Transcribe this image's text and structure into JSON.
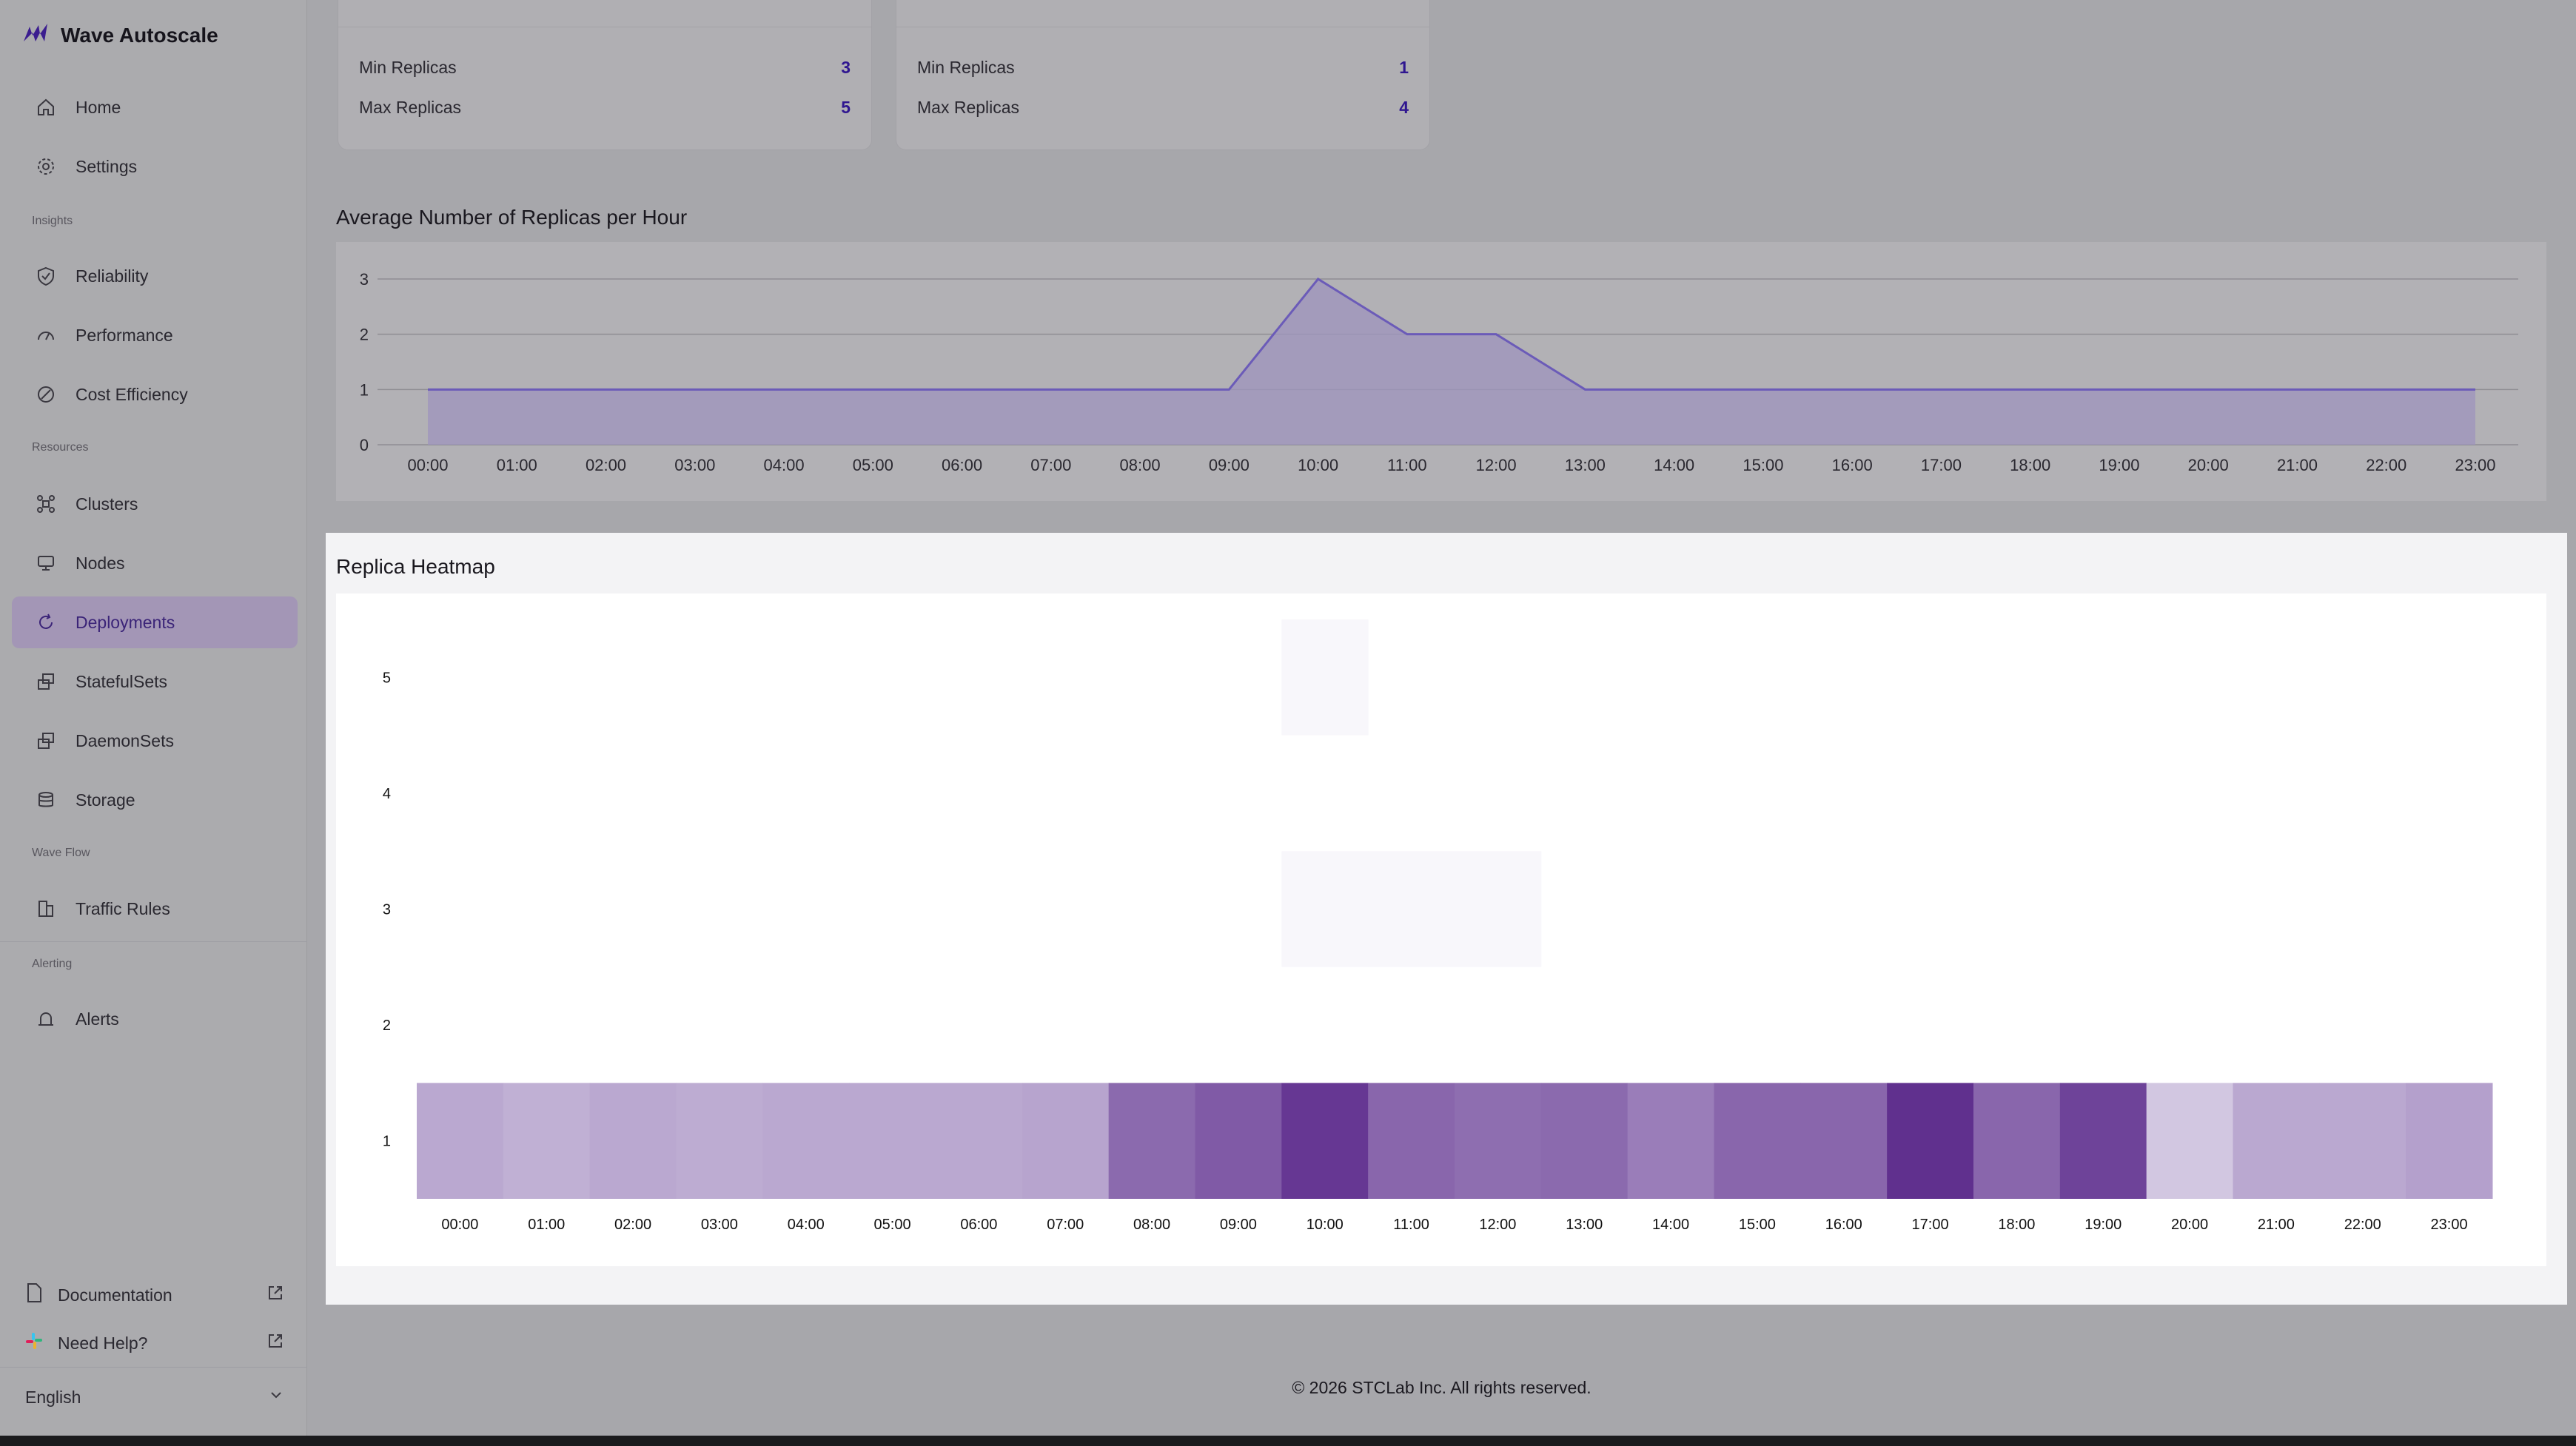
{
  "app": {
    "name": "Wave Autoscale"
  },
  "sidebar": {
    "primary": [
      {
        "label": "Home",
        "icon": "home-icon"
      },
      {
        "label": "Settings",
        "icon": "gear-icon"
      }
    ],
    "sections": {
      "insights": "Insights",
      "resources": "Resources",
      "wave_flow": "Wave Flow",
      "alerting": "Alerting"
    },
    "insights_items": [
      {
        "label": "Reliability",
        "icon": "shield-icon"
      },
      {
        "label": "Performance",
        "icon": "gauge-icon"
      },
      {
        "label": "Cost Efficiency",
        "icon": "cost-icon"
      }
    ],
    "resources_items": [
      {
        "label": "Clusters",
        "icon": "cluster-icon"
      },
      {
        "label": "Nodes",
        "icon": "server-icon"
      },
      {
        "label": "Deployments",
        "icon": "refresh-icon",
        "active": true
      },
      {
        "label": "StatefulSets",
        "icon": "stack-icon"
      },
      {
        "label": "DaemonSets",
        "icon": "stack-icon"
      },
      {
        "label": "Storage",
        "icon": "database-icon"
      }
    ],
    "wave_flow_items": [
      {
        "label": "Traffic Rules",
        "icon": "traffic-icon"
      }
    ],
    "alerting_items": [
      {
        "label": "Alerts",
        "icon": "alarm-icon"
      }
    ],
    "bottom": {
      "documentation": "Documentation",
      "help": "Need Help?",
      "language": "English"
    }
  },
  "cards": [
    {
      "min_label": "Min Replicas",
      "min_value": "3",
      "max_label": "Max Replicas",
      "max_value": "5"
    },
    {
      "min_label": "Min Replicas",
      "min_value": "1",
      "max_label": "Max Replicas",
      "max_value": "4"
    }
  ],
  "avg_chart_title": "Average Number of Replicas per Hour",
  "heatmap_title": "Replica Heatmap",
  "footer": "© 2026 STCLab Inc. All rights reserved.",
  "colors": {
    "accent": "#2f1690",
    "line": "#6b5bb8",
    "area": "#9e94bd"
  },
  "chart_data": [
    {
      "type": "area",
      "x": [
        "00:00",
        "01:00",
        "02:00",
        "03:00",
        "04:00",
        "05:00",
        "06:00",
        "07:00",
        "08:00",
        "09:00",
        "10:00",
        "11:00",
        "12:00",
        "13:00",
        "14:00",
        "15:00",
        "16:00",
        "17:00",
        "18:00",
        "19:00",
        "20:00",
        "21:00",
        "22:00",
        "23:00"
      ],
      "values": [
        1,
        1,
        1,
        1,
        1,
        1,
        1,
        1,
        1,
        1,
        3,
        2,
        2,
        1,
        1,
        1,
        1,
        1,
        1,
        1,
        1,
        1,
        1,
        1
      ],
      "ylim": [
        0,
        3
      ],
      "yticks": [
        "0",
        "1",
        "2",
        "3"
      ],
      "grid": true
    },
    {
      "type": "heatmap",
      "x": [
        "00:00",
        "01:00",
        "02:00",
        "03:00",
        "04:00",
        "05:00",
        "06:00",
        "07:00",
        "08:00",
        "09:00",
        "10:00",
        "11:00",
        "12:00",
        "13:00",
        "14:00",
        "15:00",
        "16:00",
        "17:00",
        "18:00",
        "19:00",
        "20:00",
        "21:00",
        "22:00",
        "23:00"
      ],
      "y": [
        "1",
        "2",
        "3",
        "4",
        "5"
      ],
      "cells": [
        {
          "x": "00:00",
          "y": "1",
          "intensity": 0.3
        },
        {
          "x": "01:00",
          "y": "1",
          "intensity": 0.26
        },
        {
          "x": "02:00",
          "y": "1",
          "intensity": 0.3
        },
        {
          "x": "03:00",
          "y": "1",
          "intensity": 0.28
        },
        {
          "x": "04:00",
          "y": "1",
          "intensity": 0.3
        },
        {
          "x": "05:00",
          "y": "1",
          "intensity": 0.3
        },
        {
          "x": "06:00",
          "y": "1",
          "intensity": 0.3
        },
        {
          "x": "07:00",
          "y": "1",
          "intensity": 0.32
        },
        {
          "x": "08:00",
          "y": "1",
          "intensity": 0.62
        },
        {
          "x": "09:00",
          "y": "1",
          "intensity": 0.7
        },
        {
          "x": "10:00",
          "y": "1",
          "intensity": 0.88
        },
        {
          "x": "11:00",
          "y": "1",
          "intensity": 0.64
        },
        {
          "x": "12:00",
          "y": "1",
          "intensity": 0.6
        },
        {
          "x": "13:00",
          "y": "1",
          "intensity": 0.62
        },
        {
          "x": "14:00",
          "y": "1",
          "intensity": 0.52
        },
        {
          "x": "15:00",
          "y": "1",
          "intensity": 0.64
        },
        {
          "x": "16:00",
          "y": "1",
          "intensity": 0.64
        },
        {
          "x": "17:00",
          "y": "1",
          "intensity": 0.92
        },
        {
          "x": "18:00",
          "y": "1",
          "intensity": 0.64
        },
        {
          "x": "19:00",
          "y": "1",
          "intensity": 0.82
        },
        {
          "x": "20:00",
          "y": "1",
          "intensity": 0.14
        },
        {
          "x": "21:00",
          "y": "1",
          "intensity": 0.3
        },
        {
          "x": "22:00",
          "y": "1",
          "intensity": 0.3
        },
        {
          "x": "23:00",
          "y": "1",
          "intensity": 0.34
        },
        {
          "x": "10:00",
          "y": "3",
          "intensity": 0.02
        },
        {
          "x": "11:00",
          "y": "3",
          "intensity": 0.02
        },
        {
          "x": "12:00",
          "y": "3",
          "intensity": 0.02
        },
        {
          "x": "10:00",
          "y": "5",
          "intensity": 0.02
        }
      ]
    }
  ]
}
